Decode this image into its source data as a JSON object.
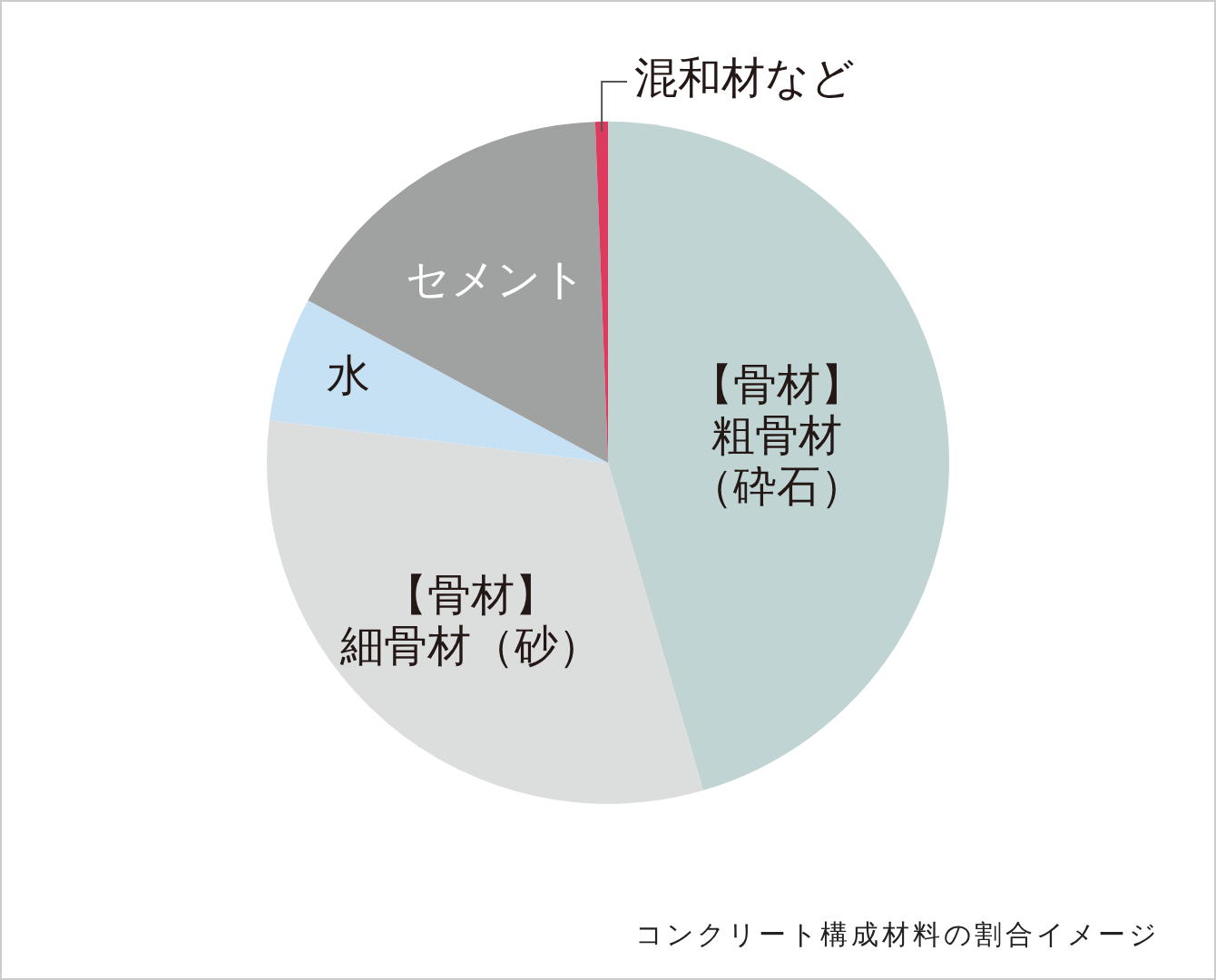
{
  "chart_data": {
    "type": "pie",
    "categories": [
      "【骨材】粗骨材（砕石）",
      "【骨材】細骨材（砂）",
      "水",
      "セメント",
      "混和材など"
    ],
    "values": [
      45.5,
      31.5,
      5.9,
      16.5,
      0.6
    ],
    "colors": [
      "#c1d4d4",
      "#dcdddd",
      "#c6e1f4",
      "#a0a1a1",
      "#de3a5e"
    ],
    "legend": false,
    "annotations": [
      "コンクリート構成材料の割合イメージ"
    ]
  }
}
